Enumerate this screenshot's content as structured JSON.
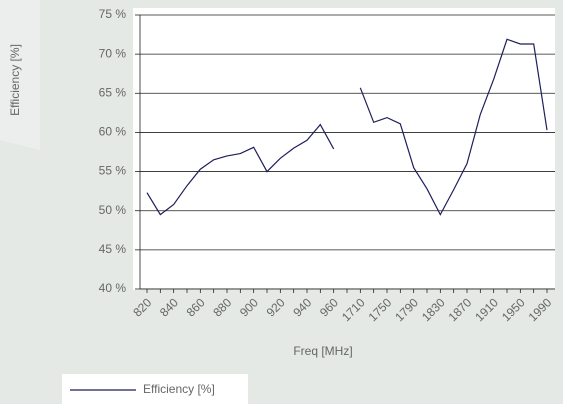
{
  "chart_data": {
    "type": "line",
    "ylabel": "Efficiency [%]",
    "xlabel": "Freq [MHz]",
    "categories": [
      "820",
      null,
      "840",
      null,
      "860",
      null,
      "880",
      null,
      "900",
      null,
      "920",
      null,
      "940",
      null,
      "960",
      null,
      "1710",
      null,
      "1750",
      null,
      "1790",
      null,
      "1830",
      null,
      "1870",
      null,
      "1910",
      null,
      "1950",
      null,
      "1990"
    ],
    "series": [
      {
        "name": "Efficiency [%]",
        "color": "#1e1f5c",
        "values": [
          52.3,
          49.5,
          50.8,
          53.2,
          55.3,
          56.5,
          57.0,
          57.3,
          58.1,
          55.0,
          56.7,
          58.0,
          59.0,
          61.0,
          57.9,
          null,
          65.7,
          61.3,
          61.9,
          61.1,
          55.5,
          52.8,
          49.5,
          52.7,
          56.0,
          62.3,
          66.8,
          71.9,
          71.3,
          71.3,
          60.3
        ]
      }
    ],
    "ylim": [
      40,
      75
    ],
    "yticks": [
      {
        "value": 40,
        "label": "40 %"
      },
      {
        "value": 45,
        "label": "45 %"
      },
      {
        "value": 50,
        "label": "50 %"
      },
      {
        "value": 55,
        "label": "55 %"
      },
      {
        "value": 60,
        "label": "60 %"
      },
      {
        "value": 65,
        "label": "65 %"
      },
      {
        "value": 70,
        "label": "70 %"
      },
      {
        "value": 75,
        "label": "75 %"
      }
    ],
    "grid": true,
    "legend": "bottom-left"
  }
}
